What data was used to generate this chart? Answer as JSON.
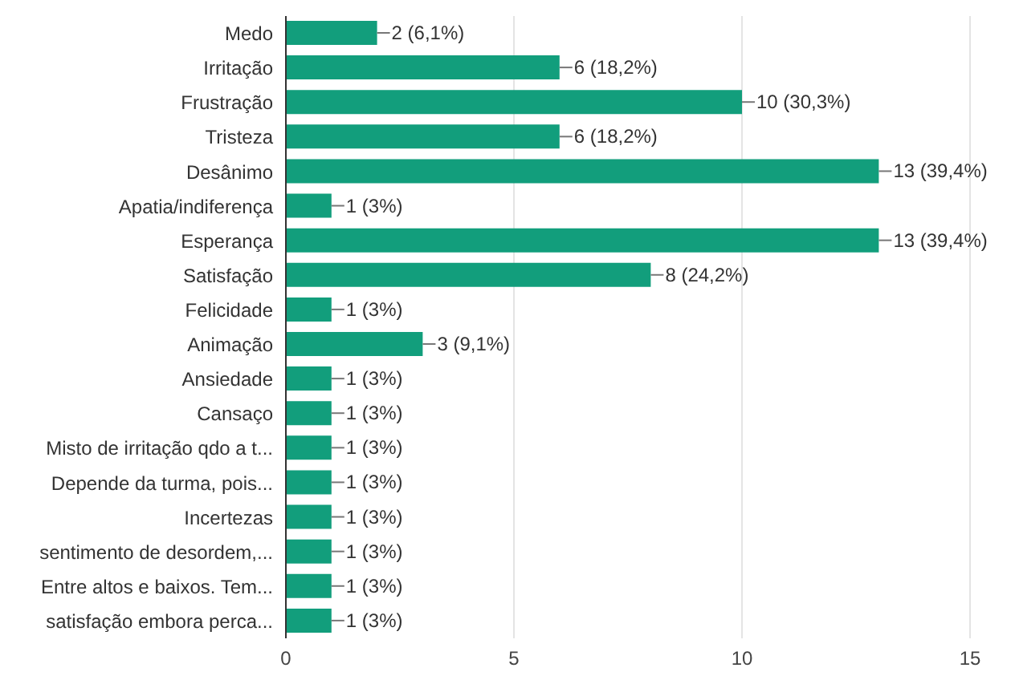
{
  "chart_data": {
    "type": "bar",
    "orientation": "horizontal",
    "categories": [
      "Medo",
      "Irritação",
      "Frustração",
      "Tristeza",
      "Desânimo",
      "Apatia/indiferença",
      "Esperança",
      "Satisfação",
      "Felicidade",
      "Animação",
      "Ansiedade",
      "Cansaço",
      "Misto de irritação qdo a t...",
      "Depende da turma, pois...",
      "Incertezas",
      "sentimento de desordem,...",
      "Entre altos e baixos. Tem...",
      "satisfação embora perca..."
    ],
    "values": [
      2,
      6,
      10,
      6,
      13,
      1,
      13,
      8,
      1,
      3,
      1,
      1,
      1,
      1,
      1,
      1,
      1,
      1
    ],
    "value_labels": [
      "2 (6,1%)",
      "6 (18,2%)",
      "10 (30,3%)",
      "6 (18,2%)",
      "13 (39,4%)",
      "1 (3%)",
      "13 (39,4%)",
      "8 (24,2%)",
      "1 (3%)",
      "3 (9,1%)",
      "1 (3%)",
      "1 (3%)",
      "1 (3%)",
      "1 (3%)",
      "1 (3%)",
      "1 (3%)",
      "1 (3%)",
      "1 (3%)"
    ],
    "color": "#129e7c",
    "xlim": [
      0,
      15
    ],
    "xticks": [
      0,
      5,
      10,
      15
    ],
    "grid": "x"
  }
}
